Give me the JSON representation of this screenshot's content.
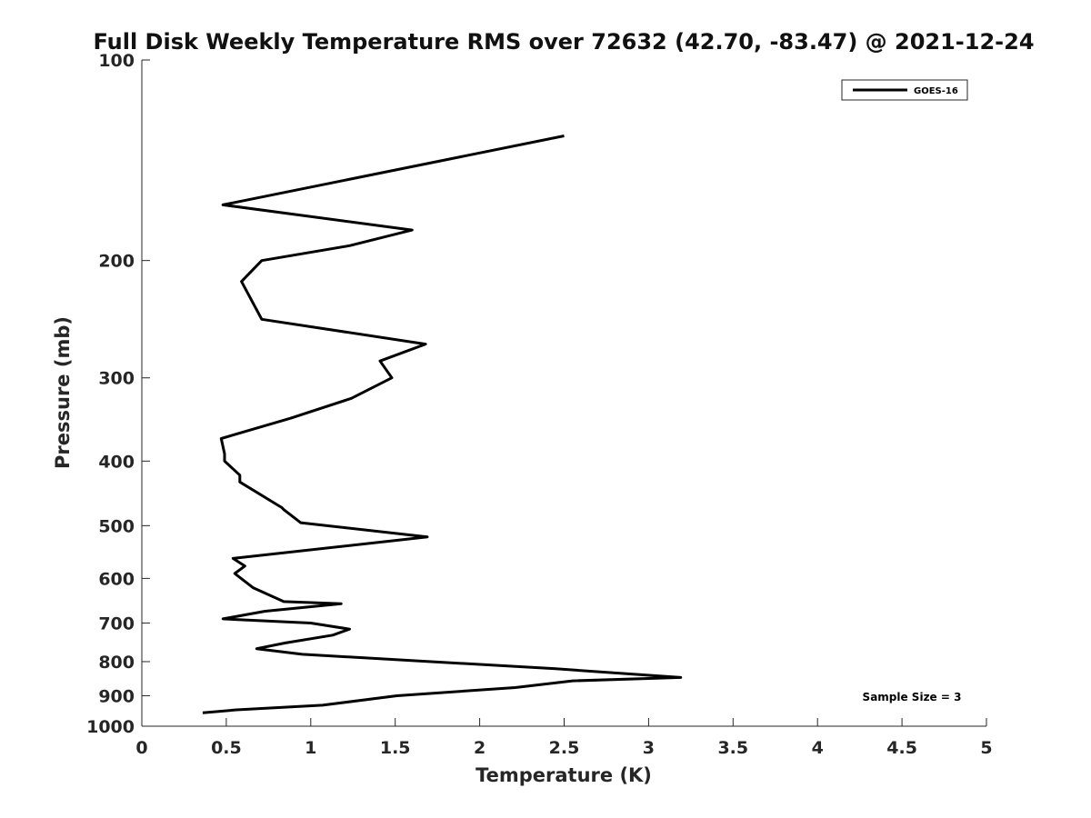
{
  "chart_data": {
    "type": "line",
    "title": "Full Disk Weekly Temperature RMS over 72632 (42.70, -83.47) @ 2021-12-24",
    "xlabel": "Temperature (K)",
    "ylabel": "Pressure (mb)",
    "xlim": [
      0,
      5
    ],
    "ylim": [
      100,
      1000
    ],
    "y_scale": "log",
    "y_reversed": true,
    "x_ticks": [
      "0",
      "0.5",
      "1",
      "1.5",
      "2",
      "2.5",
      "3",
      "3.5",
      "4",
      "4.5",
      "5"
    ],
    "y_ticks": [
      "100",
      "200",
      "300",
      "400",
      "500",
      "600",
      "700",
      "800",
      "900",
      "1000"
    ],
    "grid": false,
    "legend_position": "top-right",
    "annotation": "Sample Size = 3",
    "series": [
      {
        "name": "GOES-16",
        "color": "#000000",
        "x": [
          2.5,
          0.48,
          1.6,
          1.23,
          0.71,
          0.59,
          0.71,
          1.68,
          1.41,
          1.48,
          1.24,
          0.88,
          0.47,
          0.49,
          0.49,
          0.58,
          0.58,
          0.83,
          0.84,
          0.94,
          1.69,
          0.54,
          0.61,
          0.55,
          0.66,
          0.84,
          1.18,
          0.73,
          0.48,
          1.0,
          1.23,
          1.13,
          0.85,
          0.68,
          0.95,
          2.45,
          3.19,
          2.55,
          2.21,
          1.51,
          1.07,
          0.56,
          0.36
        ],
        "y": [
          130,
          165,
          180,
          190,
          200,
          215,
          245,
          267,
          283,
          300,
          322,
          345,
          370,
          390,
          400,
          420,
          430,
          470,
          473,
          495,
          520,
          560,
          575,
          590,
          620,
          650,
          655,
          672,
          690,
          700,
          715,
          730,
          750,
          765,
          780,
          820,
          845,
          855,
          875,
          900,
          930,
          945,
          955
        ]
      }
    ]
  }
}
